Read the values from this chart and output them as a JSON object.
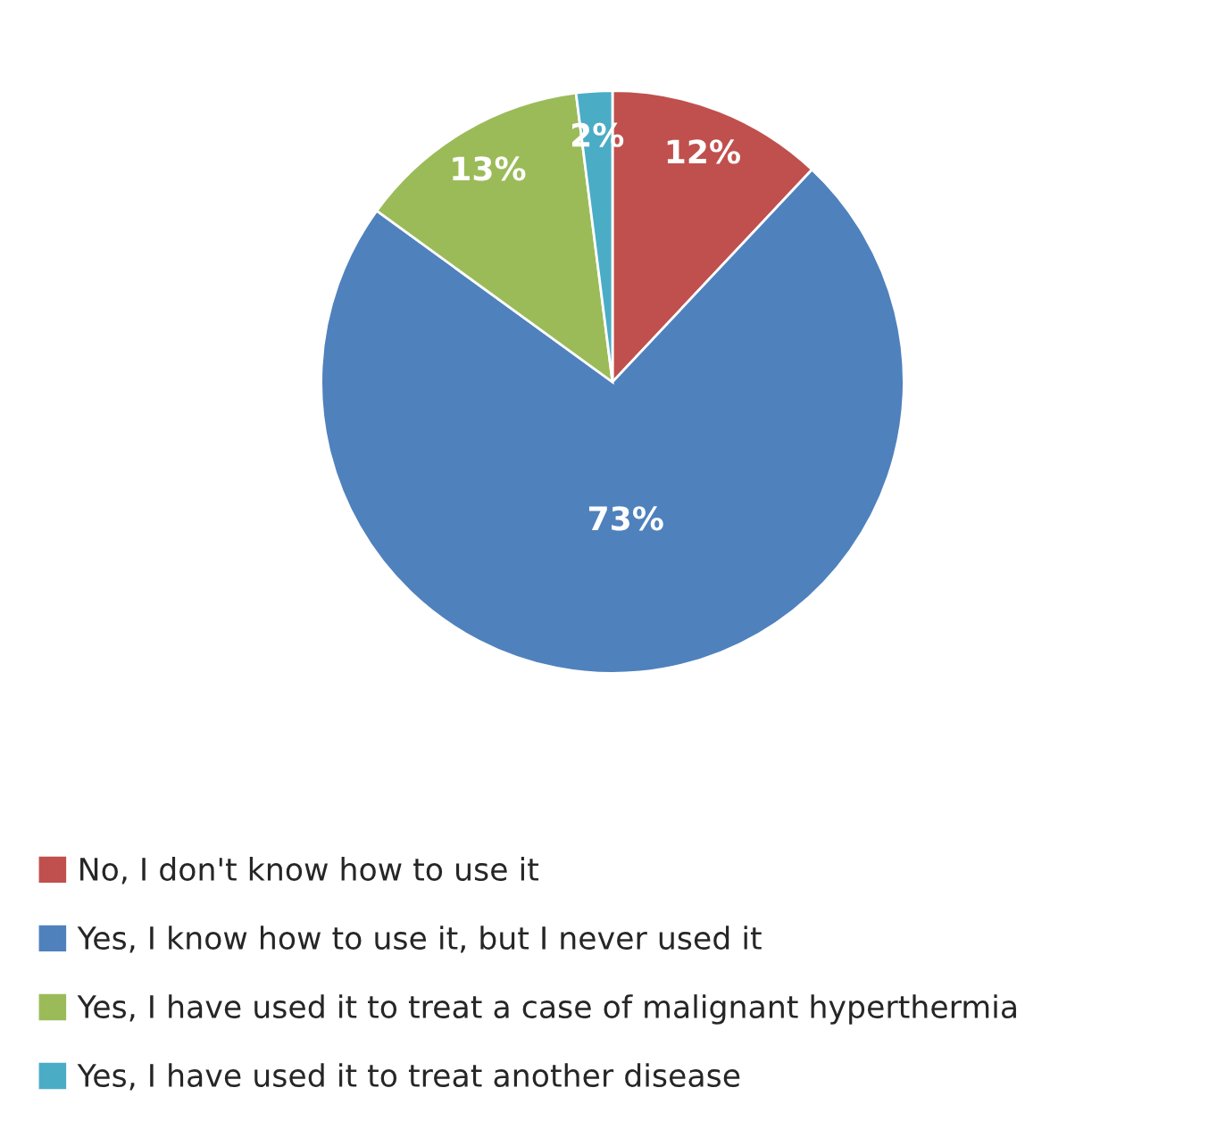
{
  "chart_data": {
    "type": "pie",
    "categories": [
      "No, I don't know how to use it",
      "Yes, I know how to use it, but I never used it",
      "Yes, I have used it to treat a case of malignant hyperthermia",
      "Yes, I have used it to treat another disease"
    ],
    "values": [
      12,
      73,
      13,
      2
    ],
    "value_labels": [
      "12%",
      "73%",
      "13%",
      "2%"
    ],
    "colors": [
      "#c0504d",
      "#4f81bd",
      "#9bbb59",
      "#4bacc6"
    ],
    "legend": "bottom"
  }
}
